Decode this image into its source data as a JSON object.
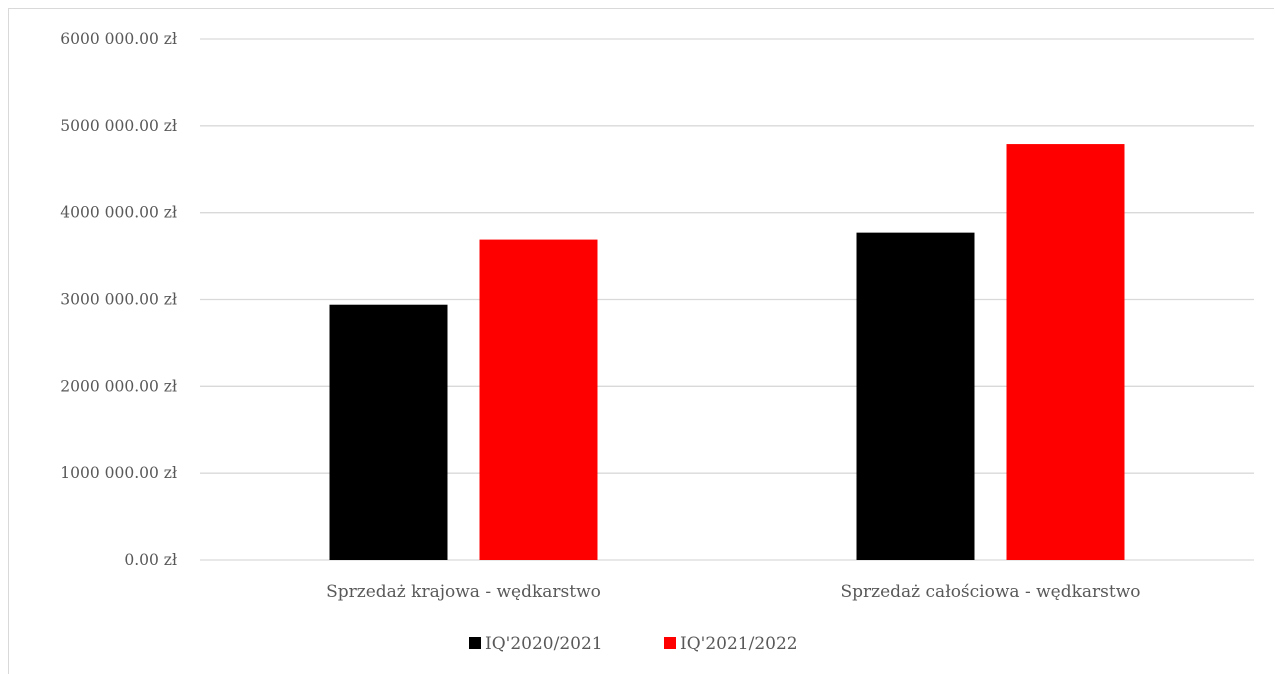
{
  "chart_data": {
    "type": "bar",
    "categories": [
      "Sprzedaż krajowa - wędkarstwo",
      "Sprzedaż całościowa - wędkarstwo"
    ],
    "series": [
      {
        "name": "IQ'2020/2021",
        "color": "#000000",
        "values": [
          2940000,
          3770000
        ]
      },
      {
        "name": "IQ'2021/2022",
        "color": "#ff0000",
        "values": [
          3690000,
          4790000
        ]
      }
    ],
    "ylim": [
      0,
      6000000
    ],
    "yticks": [
      0,
      1000000,
      2000000,
      3000000,
      4000000,
      5000000,
      6000000
    ],
    "ytick_labels": [
      "0.00 zł",
      "1000 000.00 zł",
      "2000 000.00 zł",
      "3000 000.00 zł",
      "4000 000.00 zł",
      "5000 000.00 zł",
      "6000 000.00 zł"
    ],
    "grid": true,
    "gridline_color": "#d9d9d9",
    "legend_position": "bottom",
    "title": "",
    "xlabel": "",
    "ylabel": ""
  }
}
